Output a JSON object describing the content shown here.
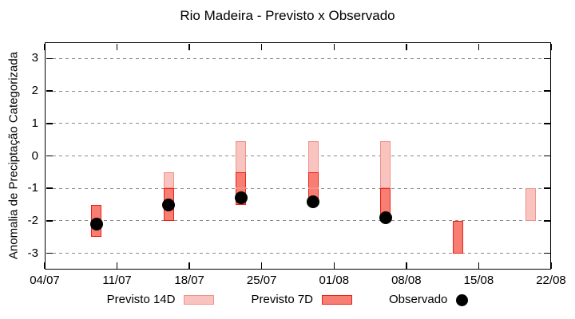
{
  "chart_data": {
    "type": "bar",
    "subtype": "floating-range-bars-with-observed-points",
    "title": "Rio Madeira - Previsto x Observado",
    "xlabel": "",
    "ylabel": "Anomalia de Preciptação Categorizada",
    "ylim": [
      -3.5,
      3.5
    ],
    "yticks": [
      3,
      2,
      1,
      0,
      -1,
      -2,
      -3
    ],
    "xtick_labels": [
      "04/07",
      "11/07",
      "18/07",
      "25/07",
      "01/08",
      "08/08",
      "15/08",
      "22/08"
    ],
    "xtick_days": [
      0,
      7,
      14,
      21,
      28,
      35,
      42,
      49
    ],
    "xlim_days": [
      0,
      49
    ],
    "grid": "horizontal-dashed",
    "legend_position": "below-plot",
    "points": [
      {
        "date": "09/07",
        "day": 5,
        "previsto14": null,
        "previsto7": [
          -1.5,
          -2.5
        ],
        "observado": -2.1
      },
      {
        "date": "16/07",
        "day": 12,
        "previsto14": [
          -0.5,
          -1.0
        ],
        "previsto7": [
          -1.0,
          -2.0
        ],
        "observado": -1.5
      },
      {
        "date": "23/07",
        "day": 19,
        "previsto14": [
          0.45,
          -1.0
        ],
        "previsto7": [
          -0.5,
          -1.5
        ],
        "observado": -1.3
      },
      {
        "date": "30/07",
        "day": 26,
        "previsto14": [
          0.45,
          -1.0
        ],
        "previsto7": [
          -0.5,
          -1.5
        ],
        "observado": -1.4
      },
      {
        "date": "06/08",
        "day": 33,
        "previsto14": [
          0.45,
          -1.0
        ],
        "previsto7": [
          -1.0,
          -2.0
        ],
        "observado": -1.9
      },
      {
        "date": "13/08",
        "day": 40,
        "previsto14": null,
        "previsto7": [
          -2.0,
          -3.0
        ],
        "observado": null
      },
      {
        "date": "20/08",
        "day": 47,
        "previsto14": [
          -1.0,
          -2.0
        ],
        "previsto7": null,
        "observado": null
      }
    ],
    "legend": [
      {
        "label": "Previsto 14D",
        "marker": "range-14d"
      },
      {
        "label": "Previsto 7D",
        "marker": "range-7d"
      },
      {
        "label": "Observado",
        "marker": "dot-marker"
      }
    ],
    "colors": {
      "previsto14_fill": "#f9c4bf",
      "previsto14_border": "#f0918a",
      "previsto7_fill": "#f87e74",
      "previsto7_border": "#ed2015",
      "observado": "#000000",
      "grid": "#8a8a8a",
      "axis": "#000000"
    }
  }
}
